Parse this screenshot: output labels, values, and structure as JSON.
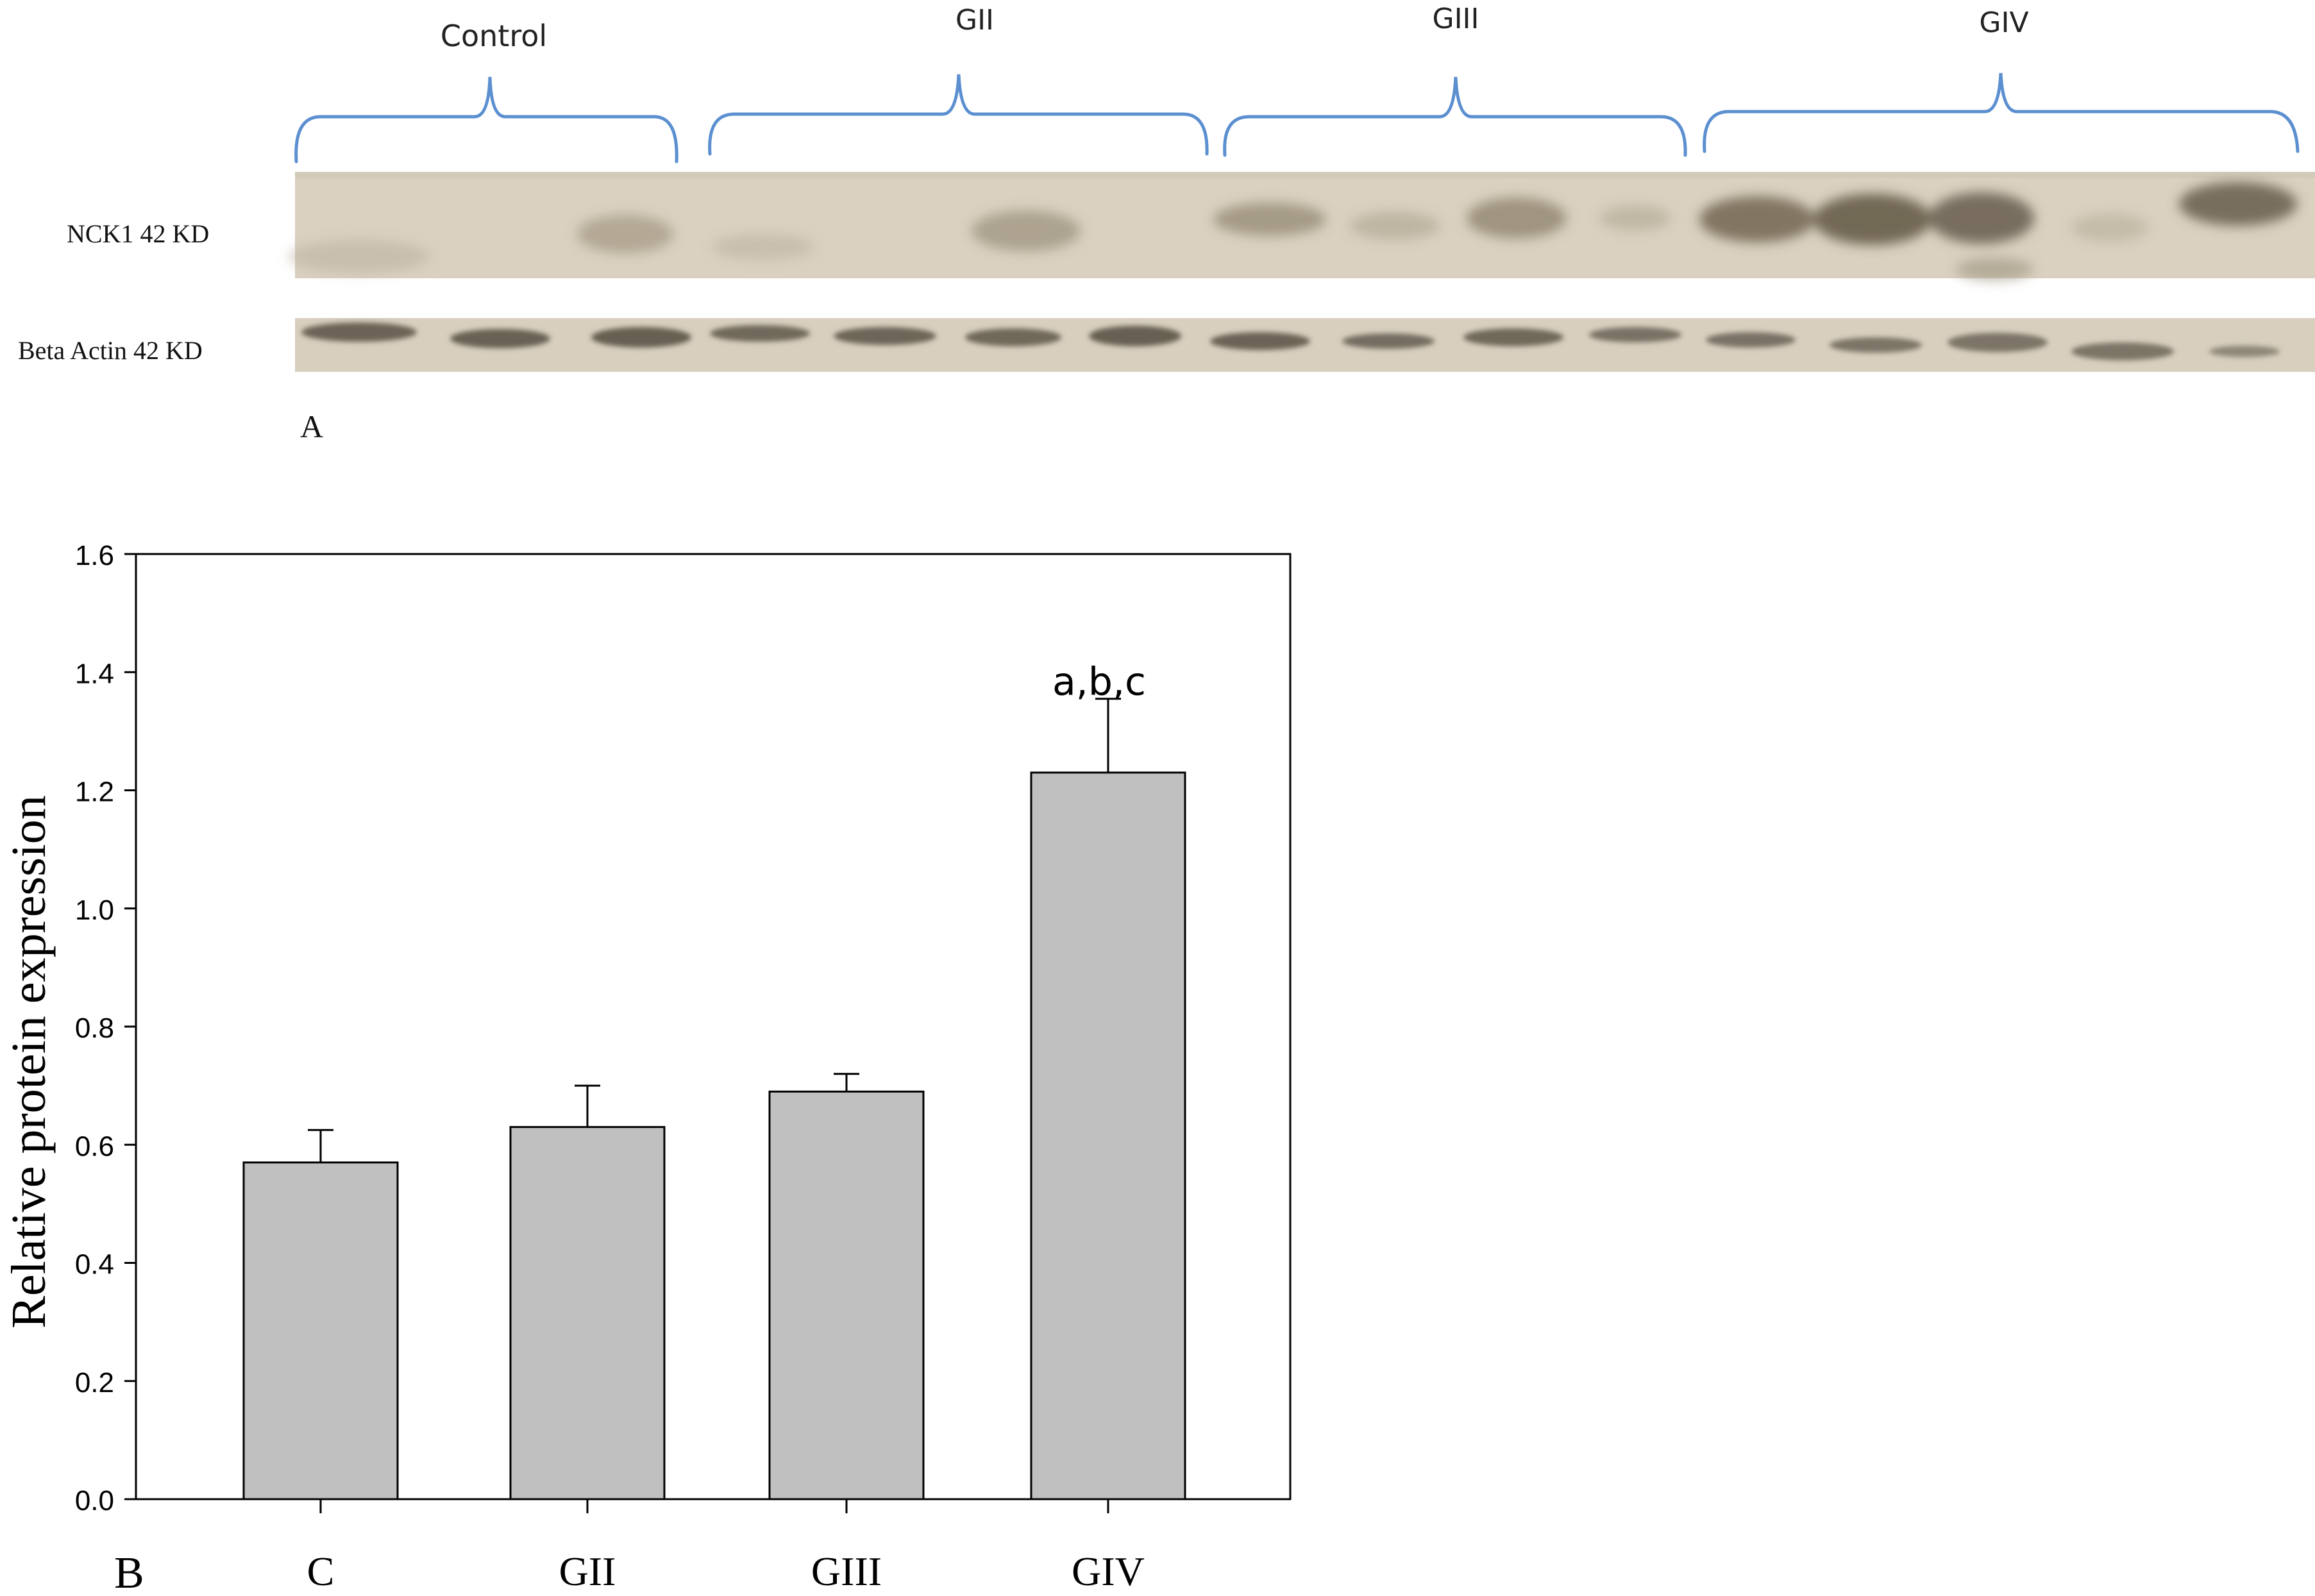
{
  "panel_a": {
    "panel_label": "A",
    "groups": [
      "Control",
      "GII",
      "GIII",
      "GIV"
    ],
    "rows": [
      {
        "label": "NCK1 42 KD"
      },
      {
        "label": "Beta Actin 42 KD"
      }
    ],
    "blot_background": "#d9d0bf"
  },
  "panel_b": {
    "panel_label": "B"
  },
  "chart_data": {
    "type": "bar",
    "categories": [
      "C",
      "GII",
      "GIII",
      "GIV"
    ],
    "values": [
      0.57,
      0.63,
      0.69,
      1.23
    ],
    "errors": [
      0.055,
      0.07,
      0.03,
      0.125
    ],
    "annotations": [
      null,
      null,
      null,
      "a,b,c"
    ],
    "title": "",
    "xlabel": "",
    "ylabel": "Relative protein  expression",
    "ylim": [
      0,
      1.6
    ],
    "yticks": [
      "0.0",
      "0.2",
      "0.4",
      "0.6",
      "0.8",
      "1.0",
      "1.2",
      "1.4",
      "1.6"
    ],
    "grid": false,
    "legend": "none",
    "bar_color": "#c0c0c0",
    "bracket_color": "#5b8fd0"
  }
}
